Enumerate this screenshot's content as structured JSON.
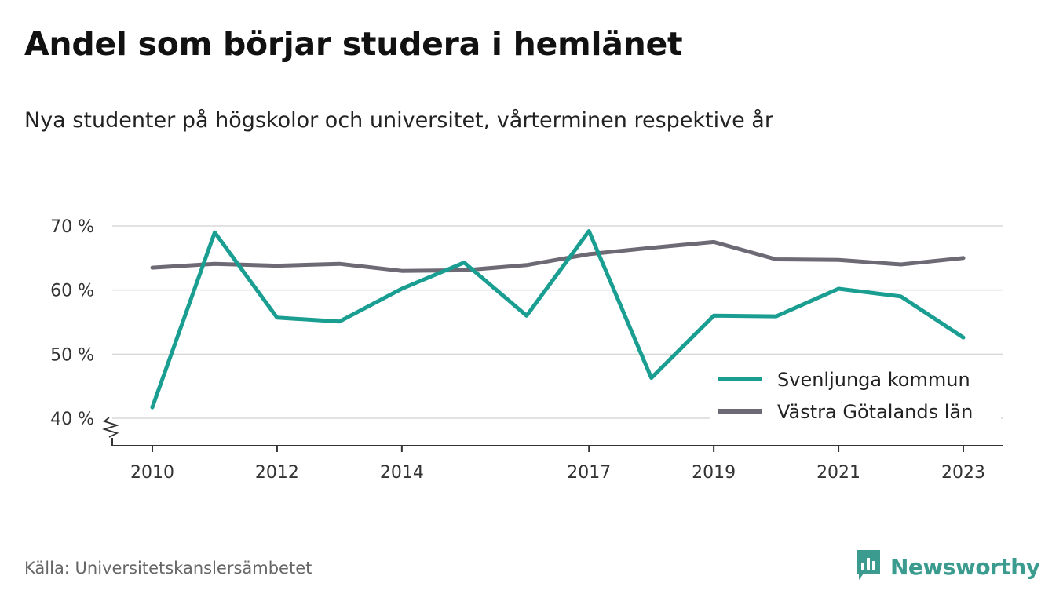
{
  "title": "Andel som börjar studera i hemlänet",
  "subtitle": "Nya studenter på högskolor och universitet, vårterminen respektive år",
  "source": "Källa: Universitetskanslersämbetet",
  "brand": {
    "name": "Newsworthy",
    "icon": "newsworthy-logo-icon",
    "color": "#3a9b8e"
  },
  "chart_data": {
    "type": "line",
    "x": [
      2010,
      2011,
      2012,
      2013,
      2014,
      2015,
      2016,
      2017,
      2018,
      2019,
      2020,
      2021,
      2022,
      2023
    ],
    "x_tick_labels": [
      "2010",
      "2012",
      "2014",
      "2017",
      "2019",
      "2021",
      "2023"
    ],
    "x_ticks": [
      2010,
      2012,
      2014,
      2017,
      2019,
      2021,
      2023
    ],
    "y_ticks": [
      40,
      50,
      60,
      70
    ],
    "y_tick_labels": [
      "40 %",
      "50 %",
      "60 %",
      "70 %"
    ],
    "xlim": [
      2009.4,
      2023.7
    ],
    "ylim": [
      36,
      72
    ],
    "axis_break": true,
    "grid": true,
    "legend_position": "bottom-right",
    "series": [
      {
        "name": "Svenljunga kommun",
        "color": "#1a9e91",
        "values": [
          41.7,
          69.0,
          55.7,
          55.1,
          60.2,
          64.3,
          56.0,
          69.2,
          46.3,
          56.0,
          55.9,
          60.2,
          59.0,
          52.6
        ]
      },
      {
        "name": "Västra Götalands län",
        "color": "#6d6a75",
        "values": [
          63.5,
          64.1,
          63.8,
          64.1,
          63.0,
          63.1,
          63.9,
          65.6,
          66.6,
          67.5,
          64.8,
          64.7,
          64.0,
          65.0
        ]
      }
    ]
  }
}
